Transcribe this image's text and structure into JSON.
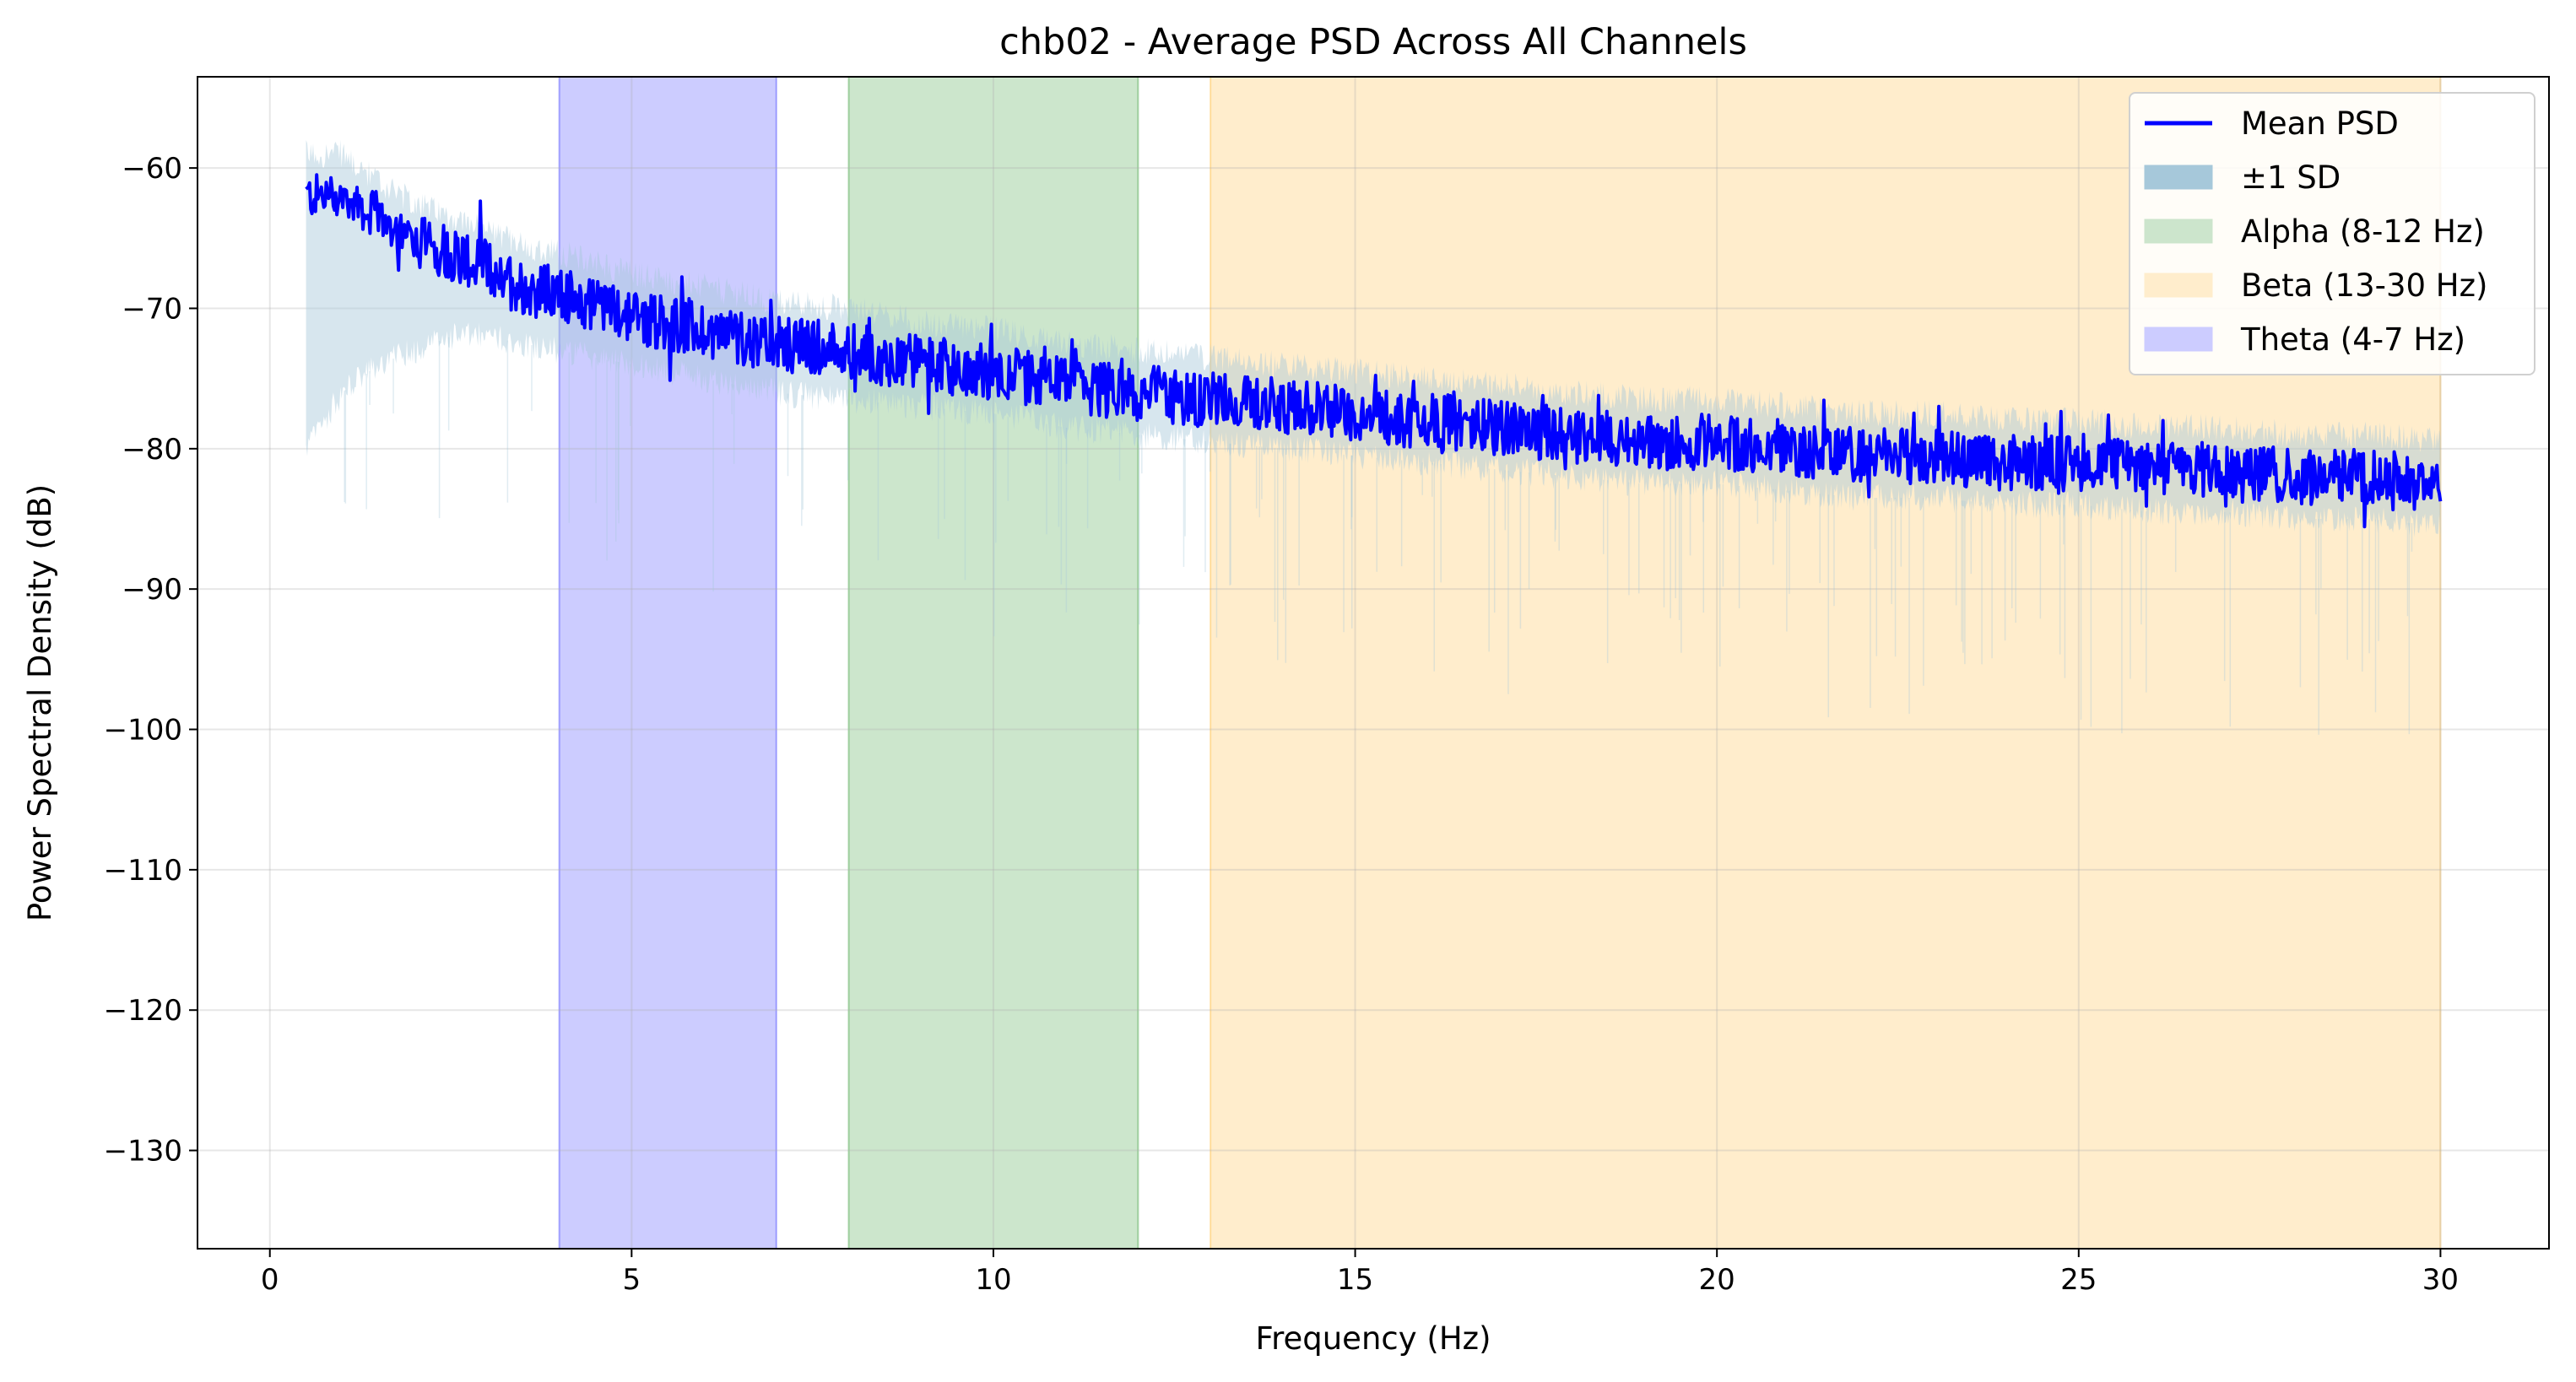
{
  "chart_data": {
    "type": "line",
    "title": "chb02 - Average PSD Across All Channels",
    "xlabel": "Frequency (Hz)",
    "ylabel": "Power Spectral Density (dB)",
    "xlim": [
      -1,
      31.5
    ],
    "ylim": [
      -137,
      -53.5
    ],
    "xticks": [
      0,
      5,
      10,
      15,
      20,
      25,
      30
    ],
    "yticks": [
      -60,
      -70,
      -80,
      -90,
      -100,
      -110,
      -120,
      -130
    ],
    "xtick_labels": [
      "0",
      "5",
      "10",
      "15",
      "20",
      "25",
      "30"
    ],
    "ytick_labels": [
      "−60",
      "−70",
      "−80",
      "−90",
      "−100",
      "−110",
      "−120",
      "−130"
    ],
    "grid": true,
    "legend_position": "top-right",
    "bands": [
      {
        "name": "Theta (4-7 Hz)",
        "x_start": 4,
        "x_end": 7,
        "color": "#0000ff",
        "alpha": 0.2
      },
      {
        "name": "Alpha (8-12 Hz)",
        "x_start": 8,
        "x_end": 12,
        "color": "#008000",
        "alpha": 0.2
      },
      {
        "name": "Beta (13-30 Hz)",
        "x_start": 13,
        "x_end": 30,
        "color": "#ffa500",
        "alpha": 0.2
      }
    ],
    "series": [
      {
        "name": "Mean PSD",
        "color": "#0000ff",
        "x": [
          0.5,
          1,
          1.5,
          2,
          2.5,
          3,
          3.5,
          4,
          5,
          6,
          7,
          8,
          9,
          10,
          11,
          12,
          13,
          14,
          15,
          16,
          17,
          18,
          19,
          20,
          21,
          22,
          23,
          24,
          25,
          26,
          27,
          28,
          29,
          30
        ],
        "y": [
          -62,
          -62,
          -63.5,
          -65,
          -66,
          -67,
          -68.5,
          -69,
          -70.5,
          -71.5,
          -72.5,
          -73,
          -74,
          -74.5,
          -75.5,
          -76,
          -76.5,
          -77,
          -77.5,
          -78,
          -78.5,
          -79,
          -79.5,
          -79.5,
          -80,
          -80.5,
          -80.5,
          -81,
          -81,
          -81.5,
          -81.5,
          -82,
          -82,
          -82.5
        ]
      },
      {
        "name": "±1 SD",
        "color": "#a6c8da",
        "x": [
          0.5,
          1,
          1.5,
          2,
          2.5,
          3,
          3.5,
          4,
          5,
          6,
          7,
          8,
          9,
          10,
          11,
          12,
          13,
          14,
          15,
          16,
          17,
          18,
          19,
          20,
          21,
          22,
          23,
          24,
          25,
          26,
          27,
          28,
          29,
          30
        ],
        "lower": [
          -80,
          -76,
          -74,
          -73,
          -72,
          -72,
          -72.5,
          -73,
          -74,
          -75,
          -76,
          -76.5,
          -77,
          -77.5,
          -78.5,
          -79,
          -79.5,
          -80,
          -80.5,
          -81,
          -81.5,
          -82,
          -82.5,
          -82.5,
          -83,
          -83.5,
          -83.5,
          -84,
          -84,
          -84.5,
          -84.5,
          -85,
          -85,
          -85.5
        ],
        "upper": [
          -59,
          -59,
          -61,
          -62.5,
          -63.5,
          -64.5,
          -65.5,
          -66,
          -67.5,
          -68.5,
          -69.5,
          -70,
          -71,
          -71.5,
          -72.5,
          -73,
          -73.5,
          -74,
          -74.5,
          -75,
          -75.5,
          -76,
          -76.5,
          -76.5,
          -77,
          -77.5,
          -77.5,
          -78,
          -78,
          -78.5,
          -78.5,
          -79,
          -79,
          -79.5
        ]
      }
    ],
    "legend": [
      {
        "label": "Mean PSD",
        "kind": "line",
        "color": "#0000ff"
      },
      {
        "label": "±1 SD",
        "kind": "patch",
        "color": "#a6c8da"
      },
      {
        "label": "Alpha (8-12 Hz)",
        "kind": "patch",
        "color": "#cce5cc"
      },
      {
        "label": "Beta (13-30 Hz)",
        "kind": "patch",
        "color": "#ffedcc"
      },
      {
        "label": "Theta (4-7 Hz)",
        "kind": "patch",
        "color": "#ccccff"
      }
    ]
  }
}
